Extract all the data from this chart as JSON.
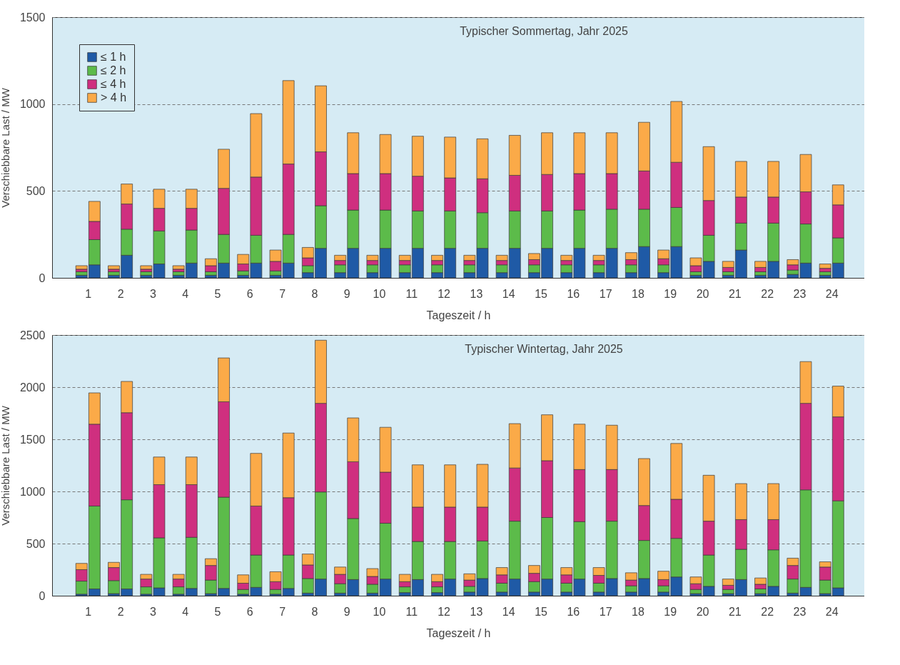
{
  "chart_data": [
    {
      "type": "bar",
      "title": "Typischer Sommertag, Jahr 2025",
      "xlabel": "Tageszeit / h",
      "ylabel": "Verschiebbare Last / MW",
      "stacked": true,
      "grid": "y",
      "legend": "top left",
      "xlim": [
        0,
        24.9
      ],
      "xticks": [
        1,
        2,
        3,
        4,
        5,
        6,
        7,
        8,
        9,
        10,
        11,
        12,
        13,
        14,
        15,
        16,
        17,
        18,
        19,
        20,
        21,
        22,
        23,
        24
      ],
      "ylim": [
        0,
        1500
      ],
      "yticks": [
        0,
        500,
        1000,
        1500
      ],
      "x": [
        0.8,
        1.2,
        1.8,
        2.2,
        2.8,
        3.2,
        3.8,
        4.2,
        4.8,
        5.2,
        5.8,
        6.2,
        6.8,
        7.2,
        7.8,
        8.2,
        8.8,
        9.2,
        9.8,
        10.2,
        10.8,
        11.2,
        11.8,
        12.2,
        12.8,
        13.2,
        13.8,
        14.2,
        14.8,
        15.2,
        15.8,
        16.2,
        16.8,
        17.2,
        17.8,
        18.2,
        18.8,
        19.2,
        19.8,
        20.2,
        20.8,
        21.2,
        21.8,
        22.2,
        22.8,
        23.2,
        23.8,
        24.2
      ],
      "series": [
        {
          "name": "≤ 1 h",
          "color": "#1f5aa6",
          "values": [
            15,
            75,
            15,
            130,
            15,
            80,
            15,
            85,
            15,
            85,
            15,
            85,
            15,
            85,
            30,
            170,
            30,
            170,
            30,
            170,
            30,
            170,
            30,
            170,
            30,
            170,
            30,
            170,
            30,
            170,
            30,
            170,
            30,
            170,
            30,
            180,
            30,
            180,
            15,
            95,
            15,
            160,
            15,
            95,
            20,
            85,
            15,
            85
          ]
        },
        {
          "name": "≤ 2 h",
          "color": "#5cbb4a",
          "values": [
            20,
            145,
            20,
            150,
            20,
            190,
            20,
            190,
            20,
            165,
            25,
            160,
            25,
            165,
            40,
            245,
            45,
            220,
            45,
            220,
            45,
            215,
            45,
            215,
            45,
            205,
            45,
            215,
            45,
            215,
            45,
            220,
            45,
            225,
            45,
            215,
            45,
            225,
            20,
            150,
            20,
            155,
            20,
            220,
            25,
            225,
            20,
            145
          ]
        },
        {
          "name": "≤ 4 h",
          "color": "#cf2f7f",
          "values": [
            15,
            105,
            15,
            145,
            15,
            130,
            15,
            125,
            35,
            265,
            40,
            335,
            55,
            405,
            45,
            310,
            25,
            210,
            25,
            210,
            25,
            200,
            25,
            190,
            25,
            195,
            25,
            205,
            30,
            210,
            25,
            210,
            25,
            205,
            30,
            220,
            35,
            260,
            35,
            200,
            25,
            150,
            25,
            150,
            30,
            185,
            20,
            190
          ]
        },
        {
          "name": "> 4 h",
          "color": "#fbaa48",
          "values": [
            20,
            115,
            20,
            115,
            20,
            110,
            20,
            110,
            40,
            225,
            55,
            365,
            65,
            480,
            60,
            380,
            30,
            235,
            30,
            225,
            30,
            230,
            30,
            235,
            30,
            230,
            30,
            230,
            35,
            240,
            30,
            235,
            30,
            235,
            40,
            280,
            50,
            350,
            45,
            310,
            35,
            205,
            35,
            205,
            30,
            215,
            25,
            115
          ]
        }
      ]
    },
    {
      "type": "bar",
      "title": "Typischer Wintertag, Jahr 2025",
      "xlabel": "Tageszeit / h",
      "ylabel": "Verschiebbare Last / MW",
      "stacked": true,
      "grid": "y",
      "xlim": [
        0,
        24.9
      ],
      "xticks": [
        1,
        2,
        3,
        4,
        5,
        6,
        7,
        8,
        9,
        10,
        11,
        12,
        13,
        14,
        15,
        16,
        17,
        18,
        19,
        20,
        21,
        22,
        23,
        24
      ],
      "ylim": [
        0,
        2500
      ],
      "yticks": [
        0,
        500,
        1000,
        1500,
        2000,
        2500
      ],
      "x": [
        0.8,
        1.2,
        1.8,
        2.2,
        2.8,
        3.2,
        3.8,
        4.2,
        4.8,
        5.2,
        5.8,
        6.2,
        6.8,
        7.2,
        7.8,
        8.2,
        8.8,
        9.2,
        9.8,
        10.2,
        10.8,
        11.2,
        11.8,
        12.2,
        12.8,
        13.2,
        13.8,
        14.2,
        14.8,
        15.2,
        15.8,
        16.2,
        16.8,
        17.2,
        17.8,
        18.2,
        18.8,
        19.2,
        19.8,
        20.2,
        20.8,
        21.2,
        21.8,
        22.2,
        22.8,
        23.2,
        23.8,
        24.2
      ],
      "series": [
        {
          "color": "#1f5aa6",
          "values": [
            15,
            65,
            20,
            65,
            15,
            75,
            15,
            70,
            20,
            70,
            15,
            80,
            15,
            70,
            25,
            160,
            25,
            155,
            25,
            160,
            30,
            155,
            30,
            160,
            35,
            165,
            35,
            160,
            35,
            160,
            35,
            160,
            35,
            165,
            35,
            165,
            35,
            180,
            20,
            90,
            20,
            155,
            20,
            90,
            25,
            80,
            20,
            75
          ]
        },
        {
          "color": "#5cbb4a",
          "values": [
            125,
            795,
            125,
            855,
            70,
            480,
            70,
            490,
            130,
            875,
            45,
            310,
            45,
            320,
            140,
            835,
            90,
            585,
            85,
            535,
            55,
            365,
            55,
            360,
            55,
            360,
            85,
            555,
            100,
            590,
            85,
            550,
            85,
            550,
            60,
            365,
            60,
            370,
            40,
            300,
            40,
            290,
            45,
            350,
            135,
            935,
            130,
            835
          ]
        },
        {
          "color": "#cf2f7f",
          "values": [
            110,
            785,
            125,
            835,
            75,
            510,
            75,
            505,
            140,
            915,
            60,
            470,
            75,
            550,
            130,
            850,
            90,
            545,
            75,
            490,
            50,
            330,
            50,
            330,
            60,
            325,
            80,
            510,
            80,
            545,
            80,
            500,
            75,
            495,
            55,
            335,
            60,
            375,
            55,
            325,
            40,
            285,
            45,
            290,
            130,
            830,
            125,
            805
          ]
        },
        {
          "color": "#fbaa48",
          "values": [
            60,
            300,
            50,
            300,
            45,
            265,
            45,
            265,
            65,
            420,
            80,
            505,
            95,
            620,
            105,
            605,
            70,
            420,
            75,
            430,
            70,
            405,
            70,
            405,
            60,
            410,
            70,
            425,
            75,
            440,
            70,
            435,
            75,
            425,
            70,
            450,
            80,
            535,
            65,
            440,
            60,
            345,
            60,
            345,
            70,
            400,
            50,
            295
          ]
        }
      ]
    }
  ]
}
